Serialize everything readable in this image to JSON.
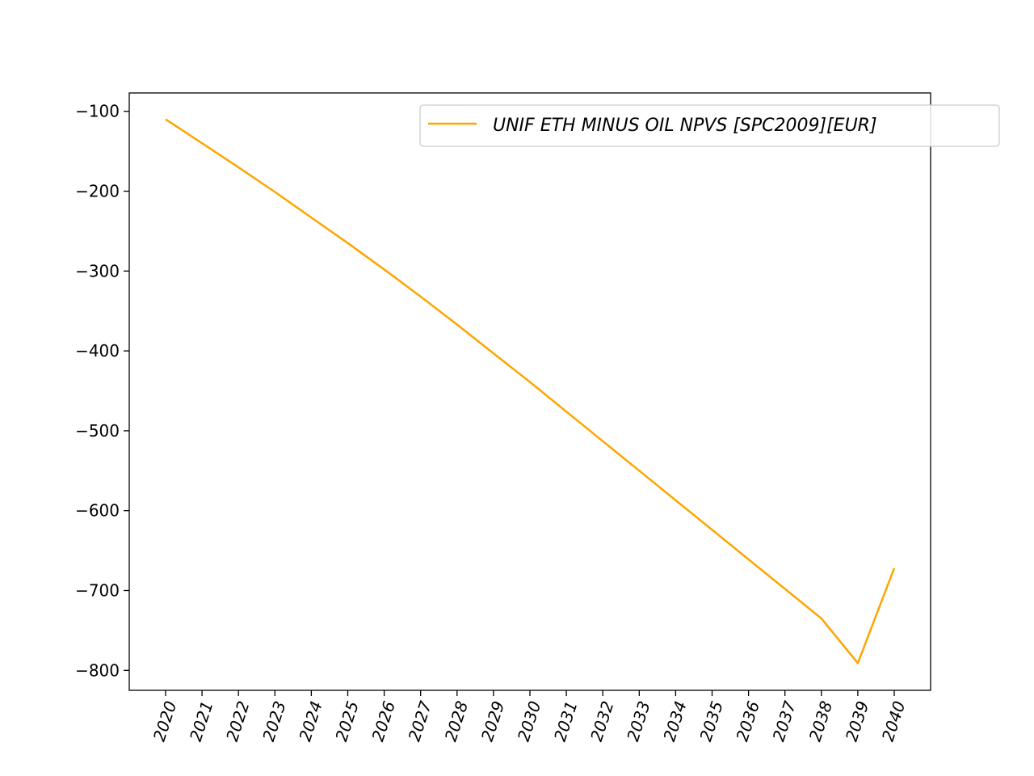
{
  "chart_data": {
    "type": "line",
    "title": "",
    "xlabel": "",
    "ylabel": "",
    "x": [
      "2020",
      "2021",
      "2022",
      "2023",
      "2024",
      "2025",
      "2026",
      "2027",
      "2028",
      "2029",
      "2030",
      "2031",
      "2032",
      "2033",
      "2034",
      "2035",
      "2036",
      "2037",
      "2038",
      "2039",
      "2040"
    ],
    "series": [
      {
        "name": "UNIF ETH MINUS OIL NPVS [SPC2009][EUR]",
        "color": "#ffa500",
        "values": [
          -110,
          -140,
          -170,
          -201,
          -233,
          -265,
          -298,
          -332,
          -367,
          -403,
          -439,
          -476,
          -513,
          -550,
          -587,
          -624,
          -661,
          -698,
          -735,
          -791,
          -672
        ]
      }
    ],
    "yticks": [
      -100,
      -200,
      -300,
      -400,
      -500,
      -600,
      -700,
      -800
    ],
    "ytick_labels": [
      "−100",
      "−200",
      "−300",
      "−400",
      "−500",
      "−600",
      "−700",
      "−800"
    ],
    "ylim": [
      -825,
      -77
    ],
    "grid": false,
    "legend_position": "top-right"
  }
}
